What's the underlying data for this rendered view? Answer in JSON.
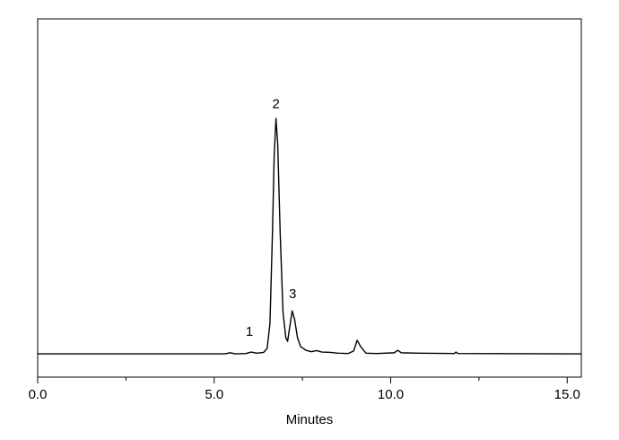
{
  "chart_data": {
    "type": "line",
    "x_label": "Minutes",
    "color": "#000000",
    "x": [
      0,
      5.3,
      5.45,
      5.6,
      5.9,
      6.05,
      6.2,
      6.4,
      6.5,
      6.58,
      6.65,
      6.7,
      6.75,
      6.8,
      6.87,
      6.95,
      7.03,
      7.08,
      7.14,
      7.21,
      7.28,
      7.36,
      7.45,
      7.6,
      7.75,
      7.9,
      8.05,
      8.3,
      8.5,
      8.8,
      8.95,
      9.05,
      9.15,
      9.3,
      9.6,
      10.1,
      10.2,
      10.3,
      10.8,
      11.8,
      11.85,
      11.9,
      15.4
    ],
    "values": [
      6.5,
      6.5,
      6.8,
      6.5,
      6.6,
      7.0,
      6.7,
      6.9,
      8,
      15,
      40,
      62,
      72.2,
      65,
      40,
      18,
      11,
      10,
      14,
      18.5,
      16,
      11,
      8.5,
      7.5,
      7.1,
      7.4,
      7.0,
      6.9,
      6.7,
      6.6,
      7.3,
      10.3,
      8.5,
      6.7,
      6.6,
      6.8,
      7.5,
      6.8,
      6.7,
      6.6,
      7.0,
      6.6,
      6.5
    ],
    "annotations": [
      {
        "text": "1",
        "x": 6.0,
        "y": 12.5
      },
      {
        "text": "2",
        "x": 6.75,
        "y": 76
      },
      {
        "text": "3",
        "x": 7.22,
        "y": 23
      }
    ],
    "xlim": [
      0,
      15.4
    ],
    "ylim": [
      0,
      100
    ],
    "xticks": [
      {
        "value": 0,
        "label": "0.0"
      },
      {
        "value": 5,
        "label": "5.0"
      },
      {
        "value": 10,
        "label": "10.0"
      },
      {
        "value": 15,
        "label": "15.0"
      }
    ],
    "xminorticks": [
      2.5,
      7.5,
      12.5
    ]
  }
}
